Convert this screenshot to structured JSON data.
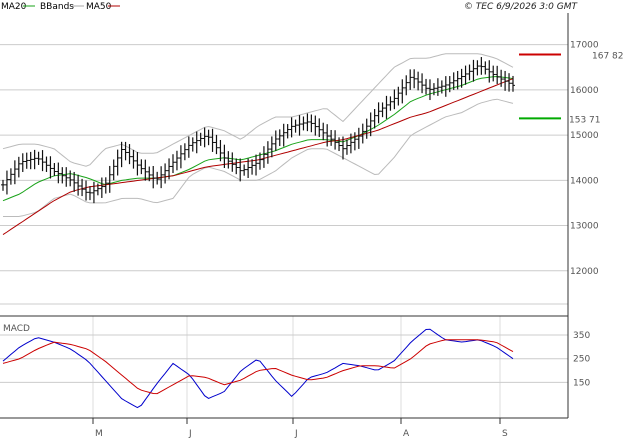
{
  "header": {
    "legend": [
      {
        "label": "MA20",
        "color": "#1aa31a"
      },
      {
        "label": "BBands",
        "color": "#aaaaaa"
      },
      {
        "label": "MA50",
        "color": "#b00000"
      }
    ],
    "copyright": "© TEC 6/9/2026 3:0 GMT"
  },
  "chart_data": [
    {
      "type": "line",
      "title": "",
      "series_kind": "ohlc",
      "x_tick_labels": [
        "M",
        "J",
        "J",
        "A",
        "S"
      ],
      "y_ticks": [
        12000,
        13000,
        14000,
        15000,
        16000,
        17000
      ],
      "ylim": [
        11000,
        17700
      ],
      "grid": true,
      "price_markers": [
        {
          "label": "167 82",
          "value": 16782,
          "color": "#cc0000"
        },
        {
          "label": "153 71",
          "value": 15371,
          "color": "#00aa00"
        }
      ],
      "price_anchors": [
        13900,
        14400,
        14500,
        14200,
        14000,
        13700,
        13900,
        14700,
        14300,
        14000,
        14400,
        14800,
        15000,
        14500,
        14200,
        14400,
        14900,
        15200,
        15300,
        15000,
        14700,
        15000,
        15500,
        15800,
        16300,
        16000,
        16100,
        16300,
        16550,
        16300,
        16100
      ],
      "bb_upper_anchors": [
        14700,
        14800,
        14800,
        14700,
        14400,
        14300,
        14700,
        14800,
        14600,
        14600,
        14800,
        15000,
        15200,
        15100,
        14900,
        15200,
        15400,
        15400,
        15500,
        15600,
        15300,
        15700,
        16100,
        16500,
        16700,
        16700,
        16800,
        16800,
        16800,
        16700,
        16500
      ],
      "bb_lower_anchors": [
        13200,
        13200,
        13300,
        13600,
        13700,
        13500,
        13500,
        13600,
        13600,
        13500,
        13600,
        14100,
        14300,
        14200,
        14000,
        14000,
        14200,
        14500,
        14700,
        14700,
        14500,
        14300,
        14100,
        14500,
        15000,
        15200,
        15400,
        15500,
        15700,
        15800,
        15700
      ],
      "ma20_anchors": [
        13550,
        13700,
        13950,
        14100,
        14150,
        14050,
        13900,
        14000,
        14050,
        14050,
        14100,
        14250,
        14450,
        14500,
        14450,
        14550,
        14650,
        14800,
        14900,
        14900,
        14850,
        15000,
        15200,
        15450,
        15750,
        15900,
        16000,
        16100,
        16250,
        16300,
        16250
      ],
      "ma50_anchors": [
        12800,
        13050,
        13300,
        13550,
        13750,
        13850,
        13900,
        13950,
        14000,
        14050,
        14100,
        14200,
        14300,
        14350,
        14400,
        14450,
        14550,
        14650,
        14750,
        14850,
        14900,
        15000,
        15100,
        15250,
        15400,
        15500,
        15650,
        15800,
        15950,
        16100,
        16250
      ]
    },
    {
      "type": "line",
      "title": "MACD",
      "y_ticks": [
        150,
        250,
        350
      ],
      "ylim": [
        0,
        430
      ],
      "grid": true,
      "series": [
        {
          "color": "#0000cc",
          "values": [
            240,
            300,
            340,
            320,
            290,
            240,
            160,
            80,
            40,
            140,
            230,
            180,
            80,
            110,
            200,
            250,
            160,
            90,
            170,
            190,
            230,
            220,
            200,
            240,
            320,
            380,
            330,
            320,
            330,
            300,
            250
          ]
        },
        {
          "color": "#cc0000",
          "values": [
            230,
            250,
            290,
            320,
            310,
            290,
            240,
            180,
            120,
            100,
            140,
            180,
            170,
            140,
            160,
            200,
            210,
            180,
            160,
            170,
            200,
            220,
            220,
            210,
            250,
            310,
            330,
            330,
            330,
            320,
            280
          ]
        }
      ]
    }
  ]
}
